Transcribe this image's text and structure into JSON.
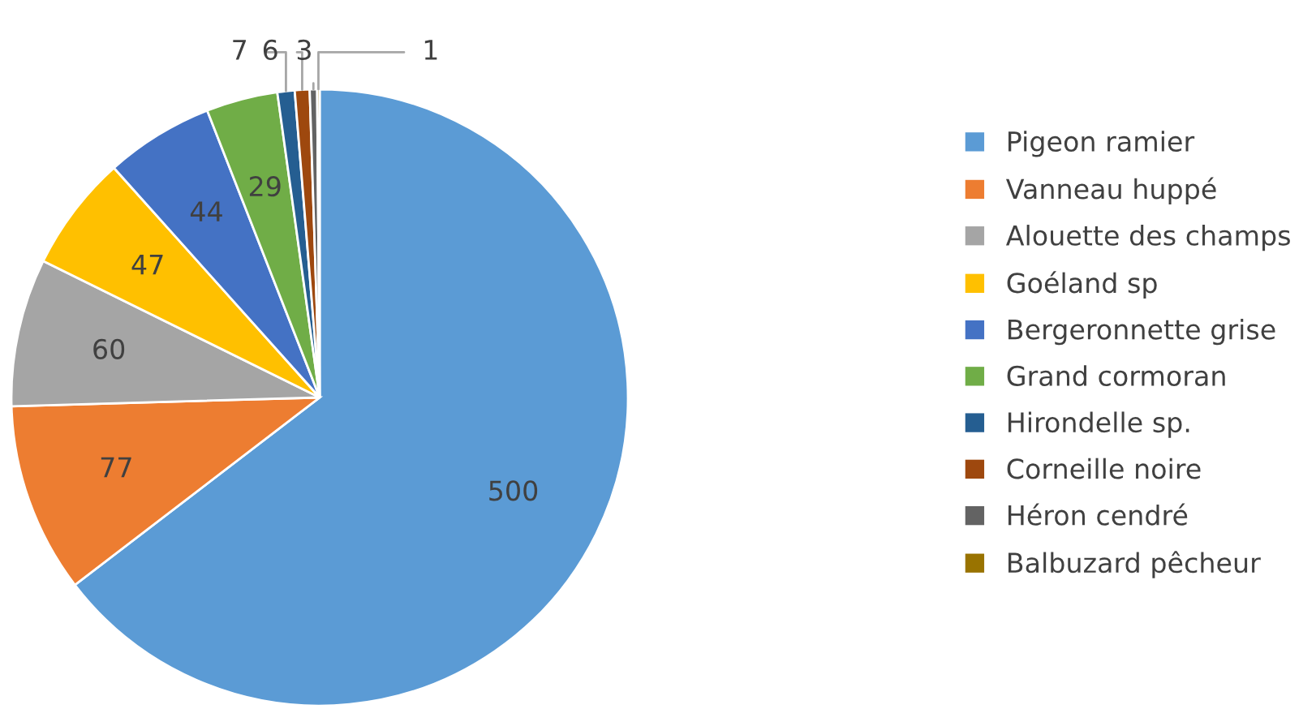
{
  "chart_data": {
    "type": "pie",
    "categories": [
      "Pigeon ramier",
      "Vanneau huppé",
      "Alouette des champs",
      "Goéland sp",
      "Bergeronnette grise",
      "Grand cormoran",
      "Hirondelle sp.",
      "Corneille noire",
      "Héron cendré",
      "Balbuzard pêcheur"
    ],
    "values": [
      500,
      77,
      60,
      47,
      44,
      29,
      7,
      6,
      3,
      1
    ],
    "colors": [
      "#5b9bd5",
      "#ed7d31",
      "#a5a5a5",
      "#ffc000",
      "#4472c4",
      "#70ad47",
      "#255e91",
      "#9e480e",
      "#636363",
      "#997300"
    ],
    "data_labels": true,
    "legend": "right"
  }
}
